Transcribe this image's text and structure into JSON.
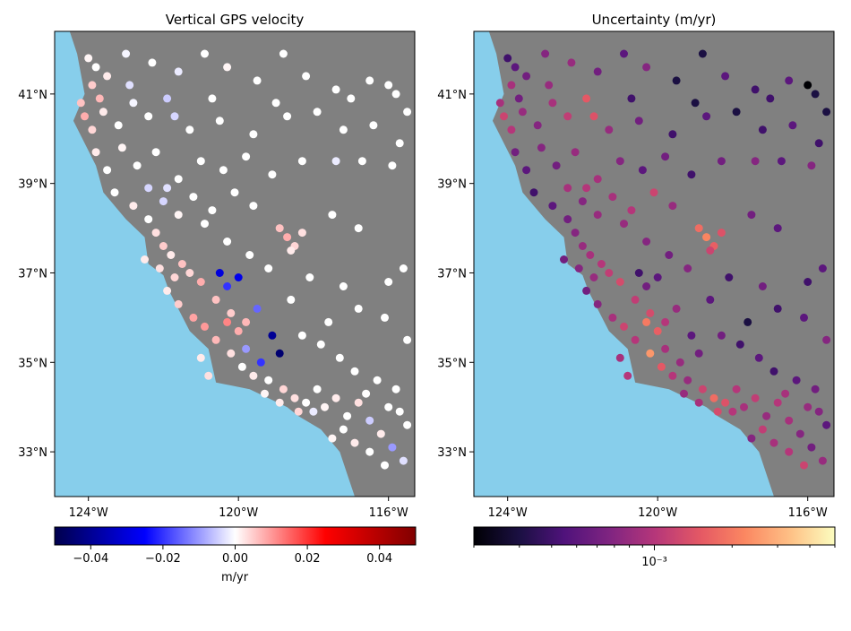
{
  "panels": [
    {
      "title": "Vertical GPS velocity",
      "x_ticks": [
        "124°W",
        "120°W",
        "116°W"
      ],
      "y_ticks": [
        "41°N",
        "39°N",
        "37°N",
        "35°N",
        "33°N"
      ],
      "colorbar": {
        "colormap": "seismic",
        "ticks": [
          "−0.04",
          "−0.02",
          "0.00",
          "0.02",
          "0.04"
        ],
        "tick_values": [
          -0.04,
          -0.02,
          0.0,
          0.02,
          0.04
        ],
        "range": [
          -0.05,
          0.05
        ],
        "label": "m/yr"
      }
    },
    {
      "title": "Uncertainty (m/yr)",
      "x_ticks": [
        "124°W",
        "120°W",
        "116°W"
      ],
      "y_ticks": [
        "41°N",
        "39°N",
        "37°N",
        "35°N",
        "33°N"
      ],
      "colorbar": {
        "colormap": "magma",
        "scale": "log",
        "ticks": [
          "10⁻³"
        ],
        "tick_values": [
          0.001
        ],
        "range": [
          0.0002,
          0.005
        ],
        "label": ""
      }
    }
  ],
  "map": {
    "lon_range": [
      -124.9,
      -115.3
    ],
    "lat_range": [
      32.0,
      42.4
    ],
    "land_color": "#808080",
    "ocean_color": "#87ceeb",
    "coastline": [
      [
        -124.9,
        42.4
      ],
      [
        -124.5,
        42.4
      ],
      [
        -124.3,
        41.9
      ],
      [
        -124.1,
        41.0
      ],
      [
        -124.4,
        40.4
      ],
      [
        -123.8,
        39.4
      ],
      [
        -123.6,
        38.8
      ],
      [
        -123.0,
        38.2
      ],
      [
        -122.5,
        37.8
      ],
      [
        -122.4,
        37.2
      ],
      [
        -122.0,
        36.95
      ],
      [
        -121.85,
        36.6
      ],
      [
        -121.3,
        35.7
      ],
      [
        -120.8,
        35.3
      ],
      [
        -120.6,
        34.55
      ],
      [
        -119.7,
        34.4
      ],
      [
        -118.7,
        34.0
      ],
      [
        -118.4,
        33.8
      ],
      [
        -117.8,
        33.5
      ],
      [
        -117.3,
        33.0
      ],
      [
        -117.1,
        32.5
      ],
      [
        -116.9,
        32.0
      ],
      [
        -124.9,
        32.0
      ]
    ]
  },
  "stations": {
    "description_in_data_units": "lon (deg), lat (deg), vertical velocity (m/yr), uncertainty (m/yr)",
    "points": [
      [
        -124.0,
        41.8,
        0.001,
        0.0004
      ],
      [
        -123.8,
        41.6,
        0.0,
        0.0005
      ],
      [
        -123.5,
        41.4,
        0.002,
        0.0006
      ],
      [
        -123.0,
        41.9,
        -0.001,
        0.0007
      ],
      [
        -122.3,
        41.7,
        0.0,
        0.0008
      ],
      [
        -121.6,
        41.5,
        -0.002,
        0.0006
      ],
      [
        -120.9,
        41.9,
        0.0,
        0.0005
      ],
      [
        -120.3,
        41.6,
        0.001,
        0.0007
      ],
      [
        -119.5,
        41.3,
        0.0,
        0.0003
      ],
      [
        -118.8,
        41.9,
        0.0,
        0.0003
      ],
      [
        -118.2,
        41.4,
        0.0,
        0.0005
      ],
      [
        -117.4,
        41.1,
        0.0,
        0.0004
      ],
      [
        -116.5,
        41.3,
        0.0,
        0.0005
      ],
      [
        -115.8,
        41.0,
        0.0,
        0.0003
      ],
      [
        -115.5,
        40.6,
        0.0,
        0.0003
      ],
      [
        -124.2,
        40.8,
        0.006,
        0.0009
      ],
      [
        -124.1,
        40.5,
        0.008,
        0.0012
      ],
      [
        -123.9,
        40.2,
        0.004,
        0.001
      ],
      [
        -123.6,
        40.6,
        0.002,
        0.0008
      ],
      [
        -123.2,
        40.3,
        0.0,
        0.0007
      ],
      [
        -122.8,
        40.8,
        -0.001,
        0.0009
      ],
      [
        -122.4,
        40.5,
        0.0,
        0.0011
      ],
      [
        -121.7,
        40.5,
        -0.004,
        0.0014
      ],
      [
        -121.3,
        40.2,
        0.0,
        0.0008
      ],
      [
        -120.5,
        40.4,
        0.0,
        0.0006
      ],
      [
        -119.6,
        40.1,
        0.0,
        0.0004
      ],
      [
        -118.7,
        40.5,
        0.0,
        0.0005
      ],
      [
        -117.9,
        40.6,
        0.0,
        0.0003
      ],
      [
        -117.2,
        40.2,
        0.0,
        0.0004
      ],
      [
        -116.4,
        40.3,
        0.0,
        0.0005
      ],
      [
        -115.7,
        39.9,
        0.0,
        0.0004
      ],
      [
        -123.8,
        39.7,
        0.002,
        0.0006
      ],
      [
        -123.5,
        39.3,
        0.0,
        0.0005
      ],
      [
        -123.1,
        39.8,
        0.001,
        0.0007
      ],
      [
        -122.7,
        39.4,
        0.0,
        0.0006
      ],
      [
        -122.2,
        39.7,
        0.0,
        0.0008
      ],
      [
        -121.6,
        39.1,
        0.0,
        0.0009
      ],
      [
        -121.0,
        39.5,
        0.0,
        0.0007
      ],
      [
        -120.4,
        39.3,
        0.0,
        0.0005
      ],
      [
        -119.8,
        39.6,
        0.0,
        0.0006
      ],
      [
        -119.1,
        39.2,
        0.0,
        0.0004
      ],
      [
        -118.3,
        39.5,
        0.0,
        0.0006
      ],
      [
        -117.4,
        39.5,
        -0.002,
        0.0007
      ],
      [
        -116.7,
        39.5,
        0.0,
        0.0005
      ],
      [
        -115.9,
        39.4,
        0.0,
        0.0007
      ],
      [
        -123.3,
        38.8,
        0.0,
        0.0004
      ],
      [
        -122.8,
        38.5,
        0.002,
        0.0005
      ],
      [
        -122.4,
        38.2,
        0.0,
        0.0006
      ],
      [
        -122.0,
        38.6,
        -0.004,
        0.0007
      ],
      [
        -121.6,
        38.3,
        0.001,
        0.0008
      ],
      [
        -121.2,
        38.7,
        0.0,
        0.0009
      ],
      [
        -120.7,
        38.4,
        0.0,
        0.001
      ],
      [
        -120.1,
        38.8,
        0.0,
        0.0012
      ],
      [
        -119.6,
        38.5,
        0.0,
        0.0008
      ],
      [
        -118.9,
        38.0,
        0.006,
        0.0018
      ],
      [
        -118.7,
        37.8,
        0.008,
        0.0022
      ],
      [
        -118.5,
        37.6,
        0.004,
        0.0016
      ],
      [
        -118.3,
        37.9,
        0.003,
        0.0014
      ],
      [
        -118.6,
        37.5,
        0.002,
        0.0012
      ],
      [
        -117.5,
        38.3,
        0.0,
        0.0006
      ],
      [
        -116.8,
        38.0,
        0.0,
        0.0005
      ],
      [
        -122.2,
        37.9,
        0.003,
        0.0007
      ],
      [
        -122.0,
        37.6,
        0.005,
        0.0008
      ],
      [
        -121.8,
        37.4,
        0.002,
        0.0009
      ],
      [
        -121.5,
        37.2,
        0.006,
        0.001
      ],
      [
        -121.3,
        37.0,
        0.004,
        0.0011
      ],
      [
        -121.0,
        36.8,
        0.008,
        0.0013
      ],
      [
        -121.9,
        36.6,
        0.002,
        0.0006
      ],
      [
        -121.6,
        36.3,
        0.005,
        0.0007
      ],
      [
        -121.2,
        36.0,
        0.009,
        0.0009
      ],
      [
        -120.9,
        35.8,
        0.01,
        0.0012
      ],
      [
        -120.6,
        35.5,
        0.007,
        0.001
      ],
      [
        -120.3,
        35.9,
        0.012,
        0.002
      ],
      [
        -120.0,
        35.7,
        0.008,
        0.0016
      ],
      [
        -120.5,
        37.0,
        -0.03,
        0.0004
      ],
      [
        -120.0,
        36.9,
        -0.028,
        0.0005
      ],
      [
        -120.3,
        36.7,
        -0.02,
        0.0006
      ],
      [
        -119.5,
        36.2,
        -0.015,
        0.0008
      ],
      [
        -119.1,
        35.6,
        -0.04,
        0.0005
      ],
      [
        -118.9,
        35.2,
        -0.045,
        0.0006
      ],
      [
        -119.8,
        35.3,
        -0.01,
        0.0009
      ],
      [
        -119.4,
        35.0,
        -0.02,
        0.0008
      ],
      [
        -120.2,
        35.2,
        0.003,
        0.0025
      ],
      [
        -119.9,
        34.9,
        0.0,
        0.0015
      ],
      [
        -119.6,
        34.7,
        0.002,
        0.001
      ],
      [
        -119.2,
        34.6,
        0.0,
        0.0008
      ],
      [
        -118.8,
        34.4,
        0.004,
        0.0012
      ],
      [
        -118.5,
        34.2,
        0.003,
        0.0018
      ],
      [
        -118.2,
        34.1,
        0.0,
        0.0014
      ],
      [
        -118.0,
        33.9,
        -0.002,
        0.001
      ],
      [
        -117.7,
        34.0,
        0.001,
        0.0009
      ],
      [
        -117.4,
        34.2,
        0.002,
        0.0011
      ],
      [
        -117.1,
        33.8,
        0.0,
        0.0008
      ],
      [
        -116.8,
        34.1,
        0.003,
        0.001
      ],
      [
        -116.5,
        33.7,
        -0.005,
        0.0009
      ],
      [
        -116.2,
        33.4,
        0.002,
        0.0007
      ],
      [
        -115.9,
        33.1,
        -0.01,
        0.0006
      ],
      [
        -115.6,
        32.8,
        -0.003,
        0.0008
      ],
      [
        -116.1,
        32.7,
        0.0,
        0.0012
      ],
      [
        -116.5,
        33.0,
        0.0,
        0.001
      ],
      [
        -116.9,
        33.2,
        0.002,
        0.0009
      ],
      [
        -117.2,
        33.5,
        0.0,
        0.0011
      ],
      [
        -115.5,
        33.6,
        0.0,
        0.0005
      ],
      [
        -115.8,
        34.4,
        0.0,
        0.0006
      ],
      [
        -116.3,
        34.6,
        0.0,
        0.0005
      ],
      [
        -116.9,
        34.8,
        0.0,
        0.0004
      ],
      [
        -117.3,
        35.1,
        0.0,
        0.0005
      ],
      [
        -117.8,
        35.4,
        0.0,
        0.0004
      ],
      [
        -118.3,
        35.6,
        0.0,
        0.0006
      ],
      [
        -117.6,
        35.9,
        0.0,
        0.0003
      ],
      [
        -116.8,
        36.2,
        0.0,
        0.0004
      ],
      [
        -116.1,
        36.0,
        0.0,
        0.0005
      ],
      [
        -115.5,
        35.5,
        0.0,
        0.0007
      ],
      [
        -118.6,
        36.4,
        0.0,
        0.0005
      ],
      [
        -118.1,
        36.9,
        0.0,
        0.0004
      ],
      [
        -117.2,
        36.7,
        0.0,
        0.0006
      ],
      [
        -116.0,
        36.8,
        0.0,
        0.0004
      ],
      [
        -115.6,
        37.1,
        0.0,
        0.0005
      ],
      [
        -120.8,
        34.7,
        0.003,
        0.001
      ],
      [
        -121.0,
        35.1,
        0.002,
        0.0009
      ],
      [
        -117.5,
        33.3,
        0.001,
        0.0007
      ],
      [
        -118.4,
        33.9,
        0.004,
        0.0013
      ],
      [
        -118.9,
        34.1,
        0.002,
        0.0009
      ],
      [
        -119.3,
        34.3,
        0.001,
        0.0008
      ],
      [
        -117.9,
        34.4,
        0.0,
        0.001
      ],
      [
        -116.6,
        34.3,
        0.0,
        0.0009
      ],
      [
        -116.0,
        34.0,
        0.0,
        0.0008
      ],
      [
        -115.7,
        33.9,
        0.0,
        0.0007
      ],
      [
        -122.5,
        37.3,
        0.002,
        0.0006
      ],
      [
        -122.1,
        37.1,
        0.003,
        0.0007
      ],
      [
        -121.7,
        36.9,
        0.004,
        0.0008
      ],
      [
        -120.6,
        36.4,
        0.006,
        0.0011
      ],
      [
        -120.2,
        36.1,
        0.005,
        0.0013
      ],
      [
        -119.8,
        35.9,
        0.007,
        0.001
      ],
      [
        -123.7,
        40.9,
        0.007,
        0.0006
      ],
      [
        -123.9,
        41.2,
        0.005,
        0.0009
      ],
      [
        -122.9,
        41.2,
        -0.003,
        0.0008
      ],
      [
        -121.9,
        40.9,
        -0.005,
        0.0015
      ],
      [
        -120.7,
        40.9,
        0.0,
        0.0004
      ],
      [
        -119.0,
        40.8,
        0.0,
        0.0003
      ],
      [
        -117.0,
        40.9,
        0.0,
        0.0004
      ],
      [
        -116.0,
        41.2,
        0.0,
        0.0002
      ],
      [
        -122.4,
        38.9,
        -0.004,
        0.0009
      ],
      [
        -121.9,
        38.9,
        -0.003,
        0.001
      ],
      [
        -120.9,
        38.1,
        0.0,
        0.0008
      ],
      [
        -120.3,
        37.7,
        0.0,
        0.0007
      ],
      [
        -119.7,
        37.4,
        0.0,
        0.0006
      ],
      [
        -119.2,
        37.1,
        0.0,
        0.0007
      ]
    ]
  }
}
